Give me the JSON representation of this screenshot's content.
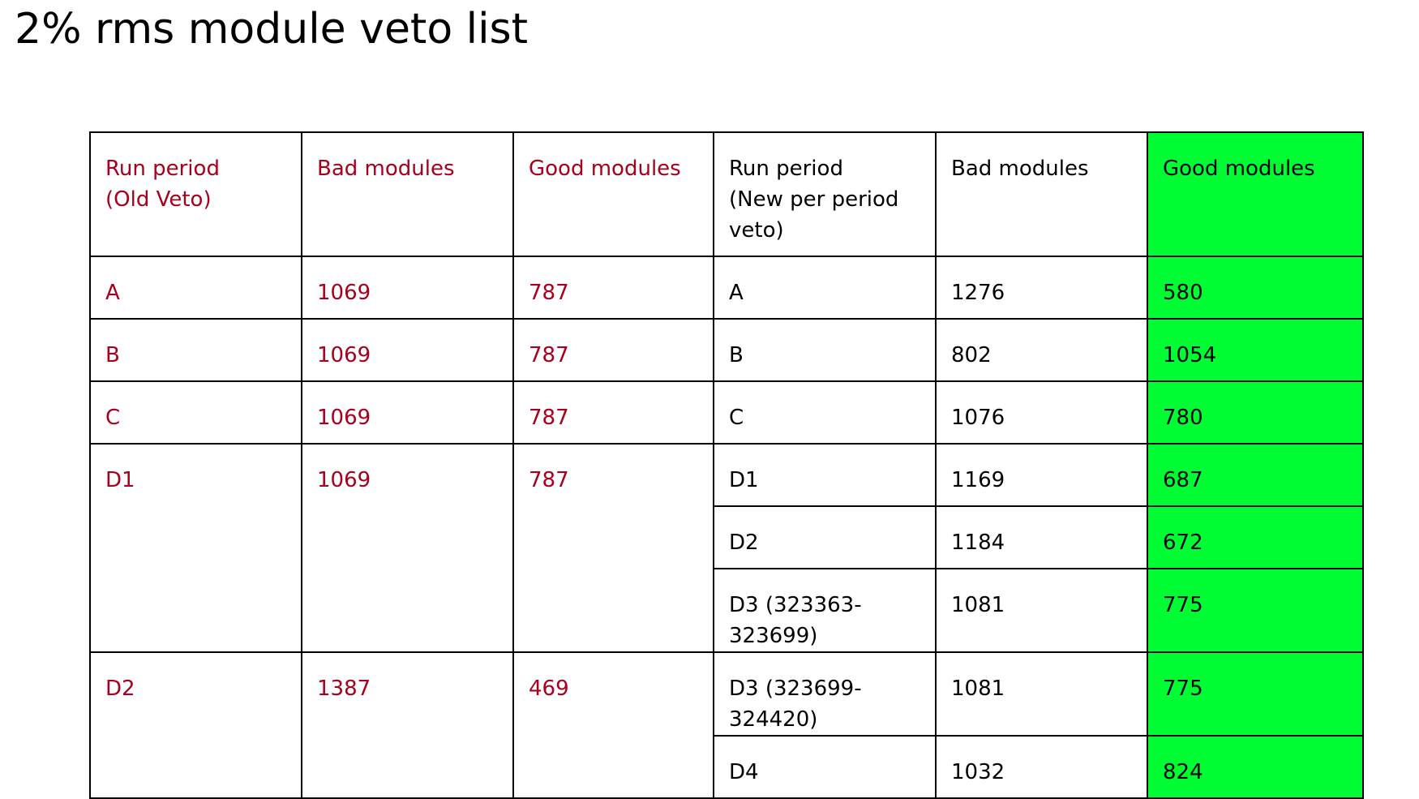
{
  "title": "2% rms module veto list",
  "colors": {
    "old_text": "#a8001c",
    "new_text": "#000000",
    "good_highlight": "#00fd33"
  },
  "headers": {
    "old_run_period": "Run period\n(Old Veto)",
    "old_bad": "Bad modules",
    "old_good": "Good modules",
    "new_run_period": "Run period\n(New per period\nveto)",
    "new_bad": "Bad modules",
    "new_good": "Good modules"
  },
  "old_rows": [
    {
      "period": "A",
      "bad": "1069",
      "good": "787"
    },
    {
      "period": "B",
      "bad": "1069",
      "good": "787"
    },
    {
      "period": "C",
      "bad": "1069",
      "good": "787"
    },
    {
      "period": "D1",
      "bad": "1069",
      "good": "787"
    },
    {
      "period": "D2",
      "bad": "1387",
      "good": "469"
    }
  ],
  "new_rows": [
    {
      "period": "A",
      "bad": "1276",
      "good": "580"
    },
    {
      "period": "B",
      "bad": "802",
      "good": "1054"
    },
    {
      "period": "C",
      "bad": "1076",
      "good": "780"
    },
    {
      "period": "D1",
      "bad": "1169",
      "good": "687"
    },
    {
      "period": "D2",
      "bad": "1184",
      "good": "672"
    },
    {
      "period": "D3 (323363-323699)",
      "bad": "1081",
      "good": "775"
    },
    {
      "period": "D3 (323699-324420)",
      "bad": "1081",
      "good": "775"
    },
    {
      "period": "D4",
      "bad": "1032",
      "good": "824"
    }
  ]
}
